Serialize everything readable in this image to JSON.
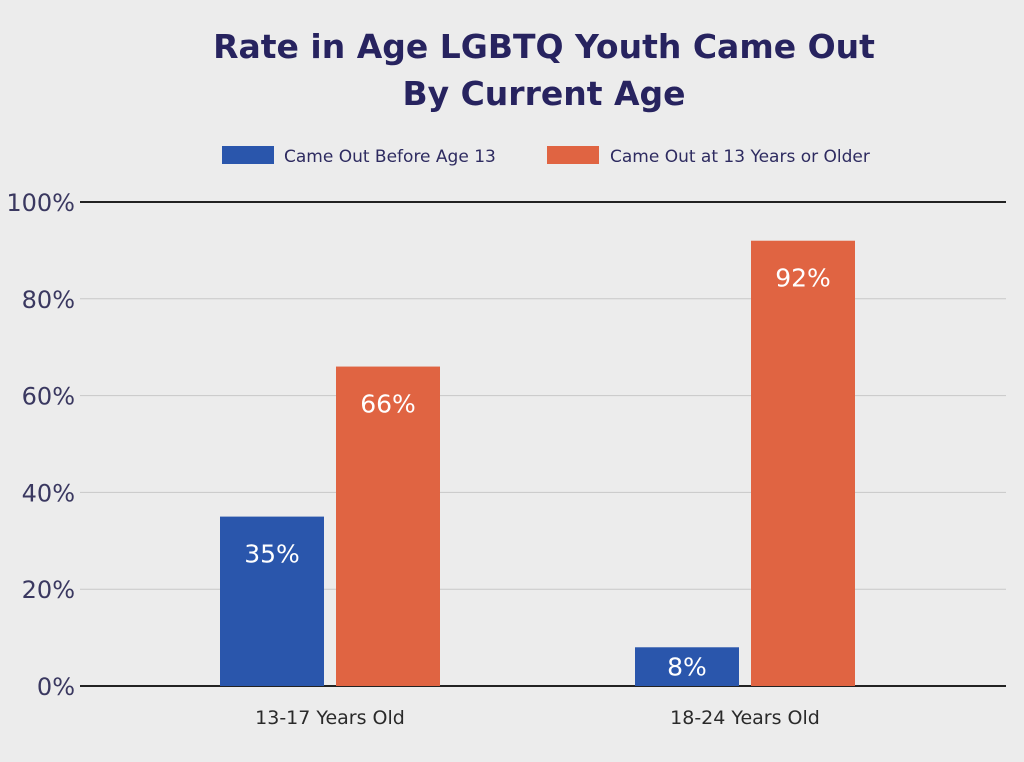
{
  "chart_data": {
    "type": "bar",
    "title_lines": [
      "Rate in Age LGBTQ Youth Came Out",
      "By Current Age"
    ],
    "categories": [
      "13-17 Years Old",
      "18-24 Years Old"
    ],
    "series": [
      {
        "name": "Came Out Before Age 13",
        "values": [
          35,
          8
        ],
        "labels": [
          "35%",
          "8%"
        ],
        "color": "#2a56ac"
      },
      {
        "name": "Came Out at 13 Years or Older",
        "values": [
          66,
          92
        ],
        "labels": [
          "66%",
          "92%"
        ],
        "color": "#e06442"
      }
    ],
    "ylim": [
      0,
      100
    ],
    "yticks": [
      0,
      20,
      40,
      60,
      80,
      100
    ],
    "ytick_labels": [
      "0%",
      "20%",
      "40%",
      "60%",
      "80%",
      "100%"
    ],
    "grid": true,
    "legend_position": "top"
  },
  "colors": {
    "background": "#ececec",
    "title": "#27235f",
    "gridline": "#c8c8c8",
    "axis": "#222222"
  }
}
